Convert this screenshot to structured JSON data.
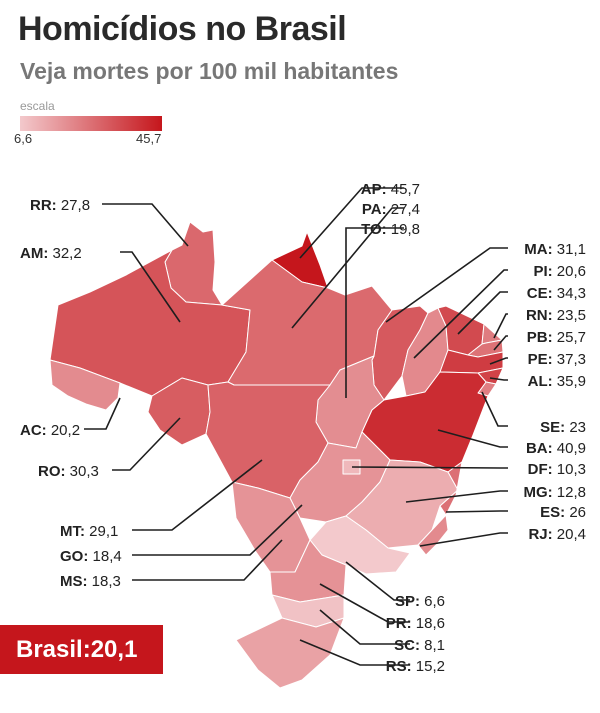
{
  "title": "Homicídios no Brasil",
  "subtitle": "Veja mortes por 100 mil habitantes",
  "legend": {
    "title": "escala",
    "min_label": "6,6",
    "max_label": "45,7",
    "min_value": 6.6,
    "max_value": 45.7,
    "color_min": "#f3c9cc",
    "color_max": "#c5161c"
  },
  "total": {
    "label": "Brasil:",
    "value_label": "20,1",
    "value": 20.1,
    "bg_color": "#c5161c"
  },
  "states": [
    {
      "uf": "RR",
      "value": 27.8,
      "label": "27,8"
    },
    {
      "uf": "AM",
      "value": 32.2,
      "label": "32,2"
    },
    {
      "uf": "AC",
      "value": 20.2,
      "label": "20,2"
    },
    {
      "uf": "RO",
      "value": 30.3,
      "label": "30,3"
    },
    {
      "uf": "MT",
      "value": 29.1,
      "label": "29,1"
    },
    {
      "uf": "GO",
      "value": 18.4,
      "label": "18,4"
    },
    {
      "uf": "MS",
      "value": 18.3,
      "label": "18,3"
    },
    {
      "uf": "AP",
      "value": 45.7,
      "label": "45,7"
    },
    {
      "uf": "PA",
      "value": 27.4,
      "label": "27,4"
    },
    {
      "uf": "TO",
      "value": 19.8,
      "label": "19,8"
    },
    {
      "uf": "MA",
      "value": 31.1,
      "label": "31,1"
    },
    {
      "uf": "PI",
      "value": 20.6,
      "label": "20,6"
    },
    {
      "uf": "CE",
      "value": 34.3,
      "label": "34,3"
    },
    {
      "uf": "RN",
      "value": 23.5,
      "label": "23,5"
    },
    {
      "uf": "PB",
      "value": 25.7,
      "label": "25,7"
    },
    {
      "uf": "PE",
      "value": 37.3,
      "label": "37,3"
    },
    {
      "uf": "AL",
      "value": 35.9,
      "label": "35,9"
    },
    {
      "uf": "SE",
      "value": 23,
      "label": "23"
    },
    {
      "uf": "BA",
      "value": 40.9,
      "label": "40,9"
    },
    {
      "uf": "DF",
      "value": 10.3,
      "label": "10,3"
    },
    {
      "uf": "MG",
      "value": 12.8,
      "label": "12,8"
    },
    {
      "uf": "ES",
      "value": 26,
      "label": "26"
    },
    {
      "uf": "RJ",
      "value": 20.4,
      "label": "20,4"
    },
    {
      "uf": "SP",
      "value": 6.6,
      "label": "6,6"
    },
    {
      "uf": "PR",
      "value": 18.6,
      "label": "18,6"
    },
    {
      "uf": "SC",
      "value": 8.1,
      "label": "8,1"
    },
    {
      "uf": "RS",
      "value": 15.2,
      "label": "15,2"
    }
  ]
}
